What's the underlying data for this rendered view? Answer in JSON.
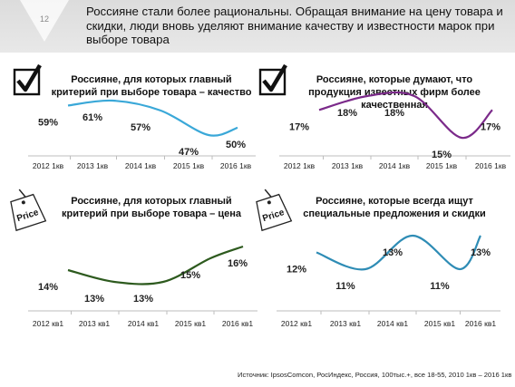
{
  "slide": {
    "number": "12",
    "title": "Россияне стали более рациональны. Обращая внимание на цену товара и скидки, люди вновь уделяют внимание качеству и известности марок при выборе товара",
    "source": "Источник: IpsosComcon, РосИндекс, Россия, 100тыс.+, все 18-55, 2010 1кв – 2016 1кв"
  },
  "icons": [
    "checkmark-box-icon",
    "checkmark-box-icon",
    "price-tag-icon",
    "price-tag-icon"
  ],
  "icon_label": "Price",
  "chart_data": [
    {
      "type": "line",
      "title": "Россияне, для которых главный критерий при выборе товара – качество",
      "categories": [
        "2012 1кв",
        "2013 1кв",
        "2014 1кв",
        "2015 1кв",
        "2016 1кв"
      ],
      "values": [
        59,
        61,
        57,
        47,
        50
      ],
      "labels": [
        "59%",
        "61%",
        "57%",
        "47%",
        "50%"
      ],
      "color": "#3aa8d8",
      "ylim": [
        40,
        64
      ]
    },
    {
      "type": "line",
      "title": "Россияне, которые думают, что продукция известных фирм более качественная",
      "categories": [
        "2012 1кв",
        "2013 1кв",
        "2014 1кв",
        "2015 1кв",
        "2016 1кв"
      ],
      "values": [
        17,
        18,
        18,
        15,
        17
      ],
      "labels": [
        "17%",
        "18%",
        "18%",
        "15%",
        "17%"
      ],
      "color": "#7b2a8a",
      "ylim": [
        14,
        19
      ]
    },
    {
      "type": "line",
      "title": "Россияне, для которых главный критерий при выборе товара – цена",
      "categories": [
        "2012 кв1",
        "2013 кв1",
        "2014 кв1",
        "2015 кв1",
        "2016 кв1"
      ],
      "values": [
        14,
        13,
        13,
        15,
        16
      ],
      "labels": [
        "14%",
        "13%",
        "13%",
        "15%",
        "16%"
      ],
      "color": "#2d5a1e",
      "ylim": [
        12,
        17
      ]
    },
    {
      "type": "line",
      "title": "Россияне, которые всегда ищут специальные предложения и скидки",
      "categories": [
        "2012 кв1",
        "2013 кв1",
        "2014 кв1",
        "2015 кв1",
        "2016 кв1"
      ],
      "values": [
        12,
        11,
        13,
        11,
        13
      ],
      "labels": [
        "12%",
        "11%",
        "13%",
        "11%",
        "13%"
      ],
      "color": "#2e8cb5",
      "ylim": [
        10,
        14
      ]
    }
  ]
}
